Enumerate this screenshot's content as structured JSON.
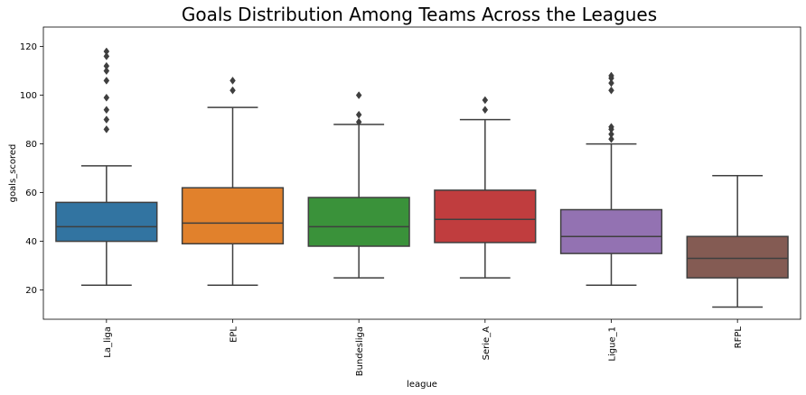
{
  "chart_data": {
    "type": "box",
    "title": "Goals Distribution Among Teams Across the Leagues",
    "xlabel": "league",
    "ylabel": "goals_scored",
    "ylim": [
      8,
      128
    ],
    "yticks": [
      20,
      40,
      60,
      80,
      100,
      120
    ],
    "grid": false,
    "categories": [
      "La_liga",
      "EPL",
      "Bundesliga",
      "Serie_A",
      "Ligue_1",
      "RFPL"
    ],
    "boxes": [
      {
        "name": "La_liga",
        "color": "#3274a1",
        "whisker_low": 22,
        "q1": 40,
        "median": 46,
        "q3": 56,
        "whisker_high": 71,
        "outliers": [
          86,
          90,
          94,
          99,
          106,
          110,
          112,
          116,
          118
        ]
      },
      {
        "name": "EPL",
        "color": "#e1812c",
        "whisker_low": 22,
        "q1": 39,
        "median": 47.5,
        "q3": 62,
        "whisker_high": 95,
        "outliers": [
          102,
          106
        ]
      },
      {
        "name": "Bundesliga",
        "color": "#3a923a",
        "whisker_low": 25,
        "q1": 38,
        "median": 46,
        "q3": 58,
        "whisker_high": 88,
        "outliers": [
          89,
          92,
          100
        ]
      },
      {
        "name": "Serie_A",
        "color": "#c03d3e",
        "whisker_low": 25,
        "q1": 39.5,
        "median": 49,
        "q3": 61,
        "whisker_high": 90,
        "outliers": [
          94,
          98
        ]
      },
      {
        "name": "Ligue_1",
        "color": "#9372b2",
        "whisker_low": 22,
        "q1": 35,
        "median": 42,
        "q3": 53,
        "whisker_high": 80,
        "outliers": [
          82,
          84,
          86,
          87,
          102,
          105,
          107,
          108
        ]
      },
      {
        "name": "RFPL",
        "color": "#845b53",
        "whisker_low": 13,
        "q1": 25,
        "median": 33,
        "q3": 42,
        "whisker_high": 67,
        "outliers": []
      }
    ],
    "line_color": "#3f3f3f"
  }
}
